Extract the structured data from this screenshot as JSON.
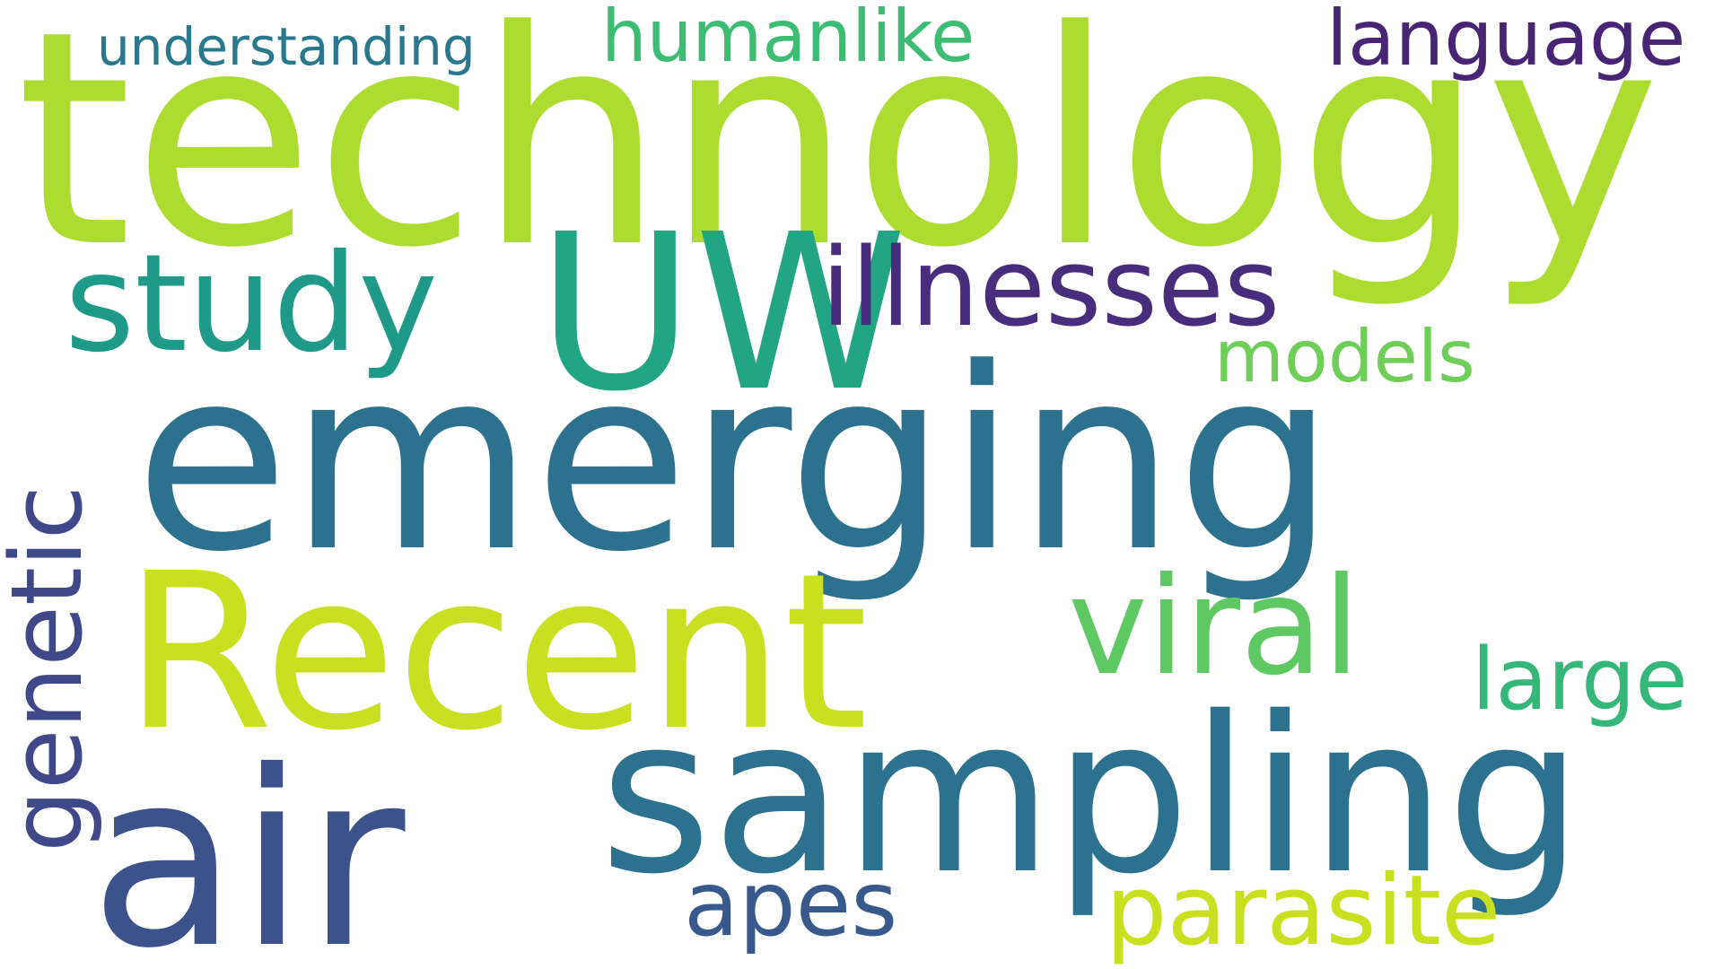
{
  "background": "#ffffff",
  "words": [
    {
      "text": "technology",
      "color": "#addc30"
    },
    {
      "text": "emerging",
      "color": "#2c728e"
    },
    {
      "text": "air",
      "color": "#3b528b"
    },
    {
      "text": "sampling",
      "color": "#2c728e"
    },
    {
      "text": "Recent",
      "color": "#c8e020"
    },
    {
      "text": "UW",
      "color": "#21a585"
    },
    {
      "text": "viral",
      "color": "#5ec962"
    },
    {
      "text": "study",
      "color": "#1f9a8a"
    },
    {
      "text": "illnesses",
      "color": "#472d7b"
    },
    {
      "text": "genetic",
      "color": "#3f4889"
    },
    {
      "text": "parasite",
      "color": "#c8e020"
    },
    {
      "text": "apes",
      "color": "#38598c"
    },
    {
      "text": "large",
      "color": "#35b779"
    },
    {
      "text": "models",
      "color": "#6ece58"
    },
    {
      "text": "language",
      "color": "#482475"
    },
    {
      "text": "humanlike",
      "color": "#3dbc74"
    },
    {
      "text": "understanding",
      "color": "#2a788e"
    }
  ]
}
